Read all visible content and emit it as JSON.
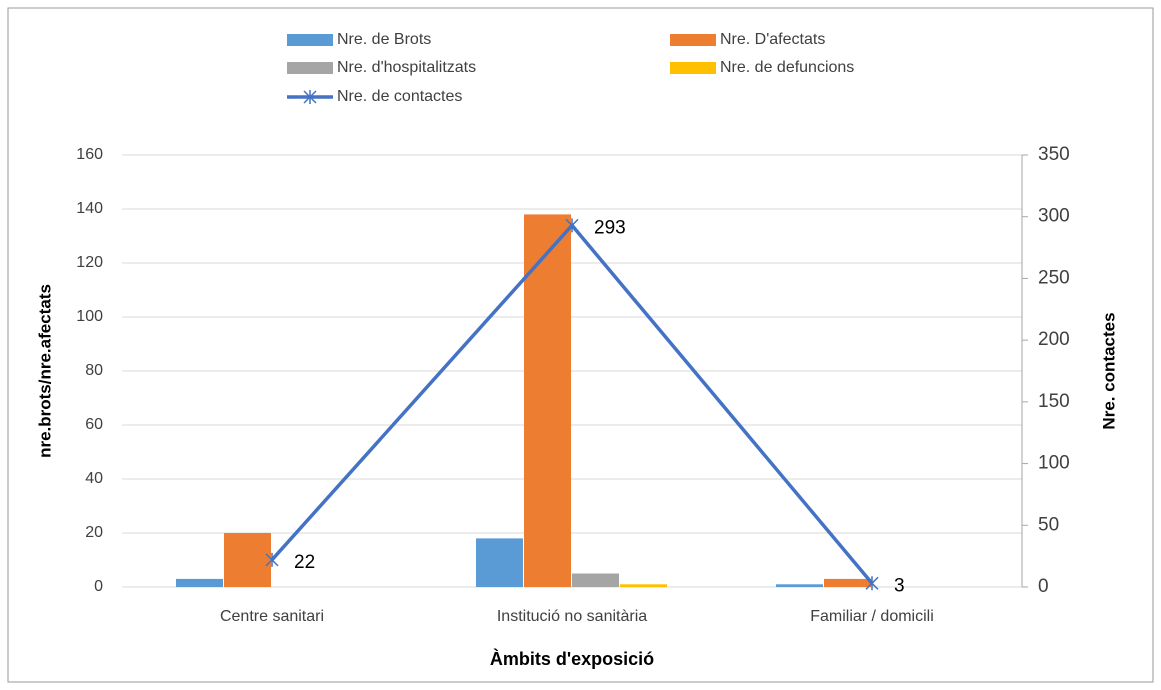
{
  "chart_data": {
    "type": "bar",
    "x_label": "Àmbits d'exposició",
    "y_label": "nre.brots/nre.afectats",
    "y2_label": "Nre. contactes",
    "categories": [
      "Centre sanitari",
      "Institució no sanitària",
      "Familiar / domicili"
    ],
    "series": [
      {
        "name": "Nre. de Brots",
        "color": "#5b9bd5",
        "values": [
          3,
          18,
          1
        ]
      },
      {
        "name": "Nre. D'afectats",
        "color": "#ed7d31",
        "values": [
          20,
          138,
          3
        ]
      },
      {
        "name": "Nre. d'hospitalitzats",
        "color": "#a5a5a5",
        "values": [
          0,
          5,
          0
        ]
      },
      {
        "name": "Nre. de defuncions",
        "color": "#ffc000",
        "values": [
          0,
          1,
          0
        ]
      },
      {
        "name": "Nre. de contactes",
        "color": "#4472c4",
        "type": "line",
        "axis": "y2",
        "values": [
          22,
          293,
          3
        ]
      }
    ],
    "ylim": [
      0,
      160
    ],
    "yticks": [
      0,
      20,
      40,
      60,
      80,
      100,
      120,
      140,
      160
    ],
    "y2lim": [
      0,
      350
    ],
    "y2ticks": [
      0,
      50,
      100,
      150,
      200,
      250,
      300,
      350
    ],
    "grid": true
  }
}
